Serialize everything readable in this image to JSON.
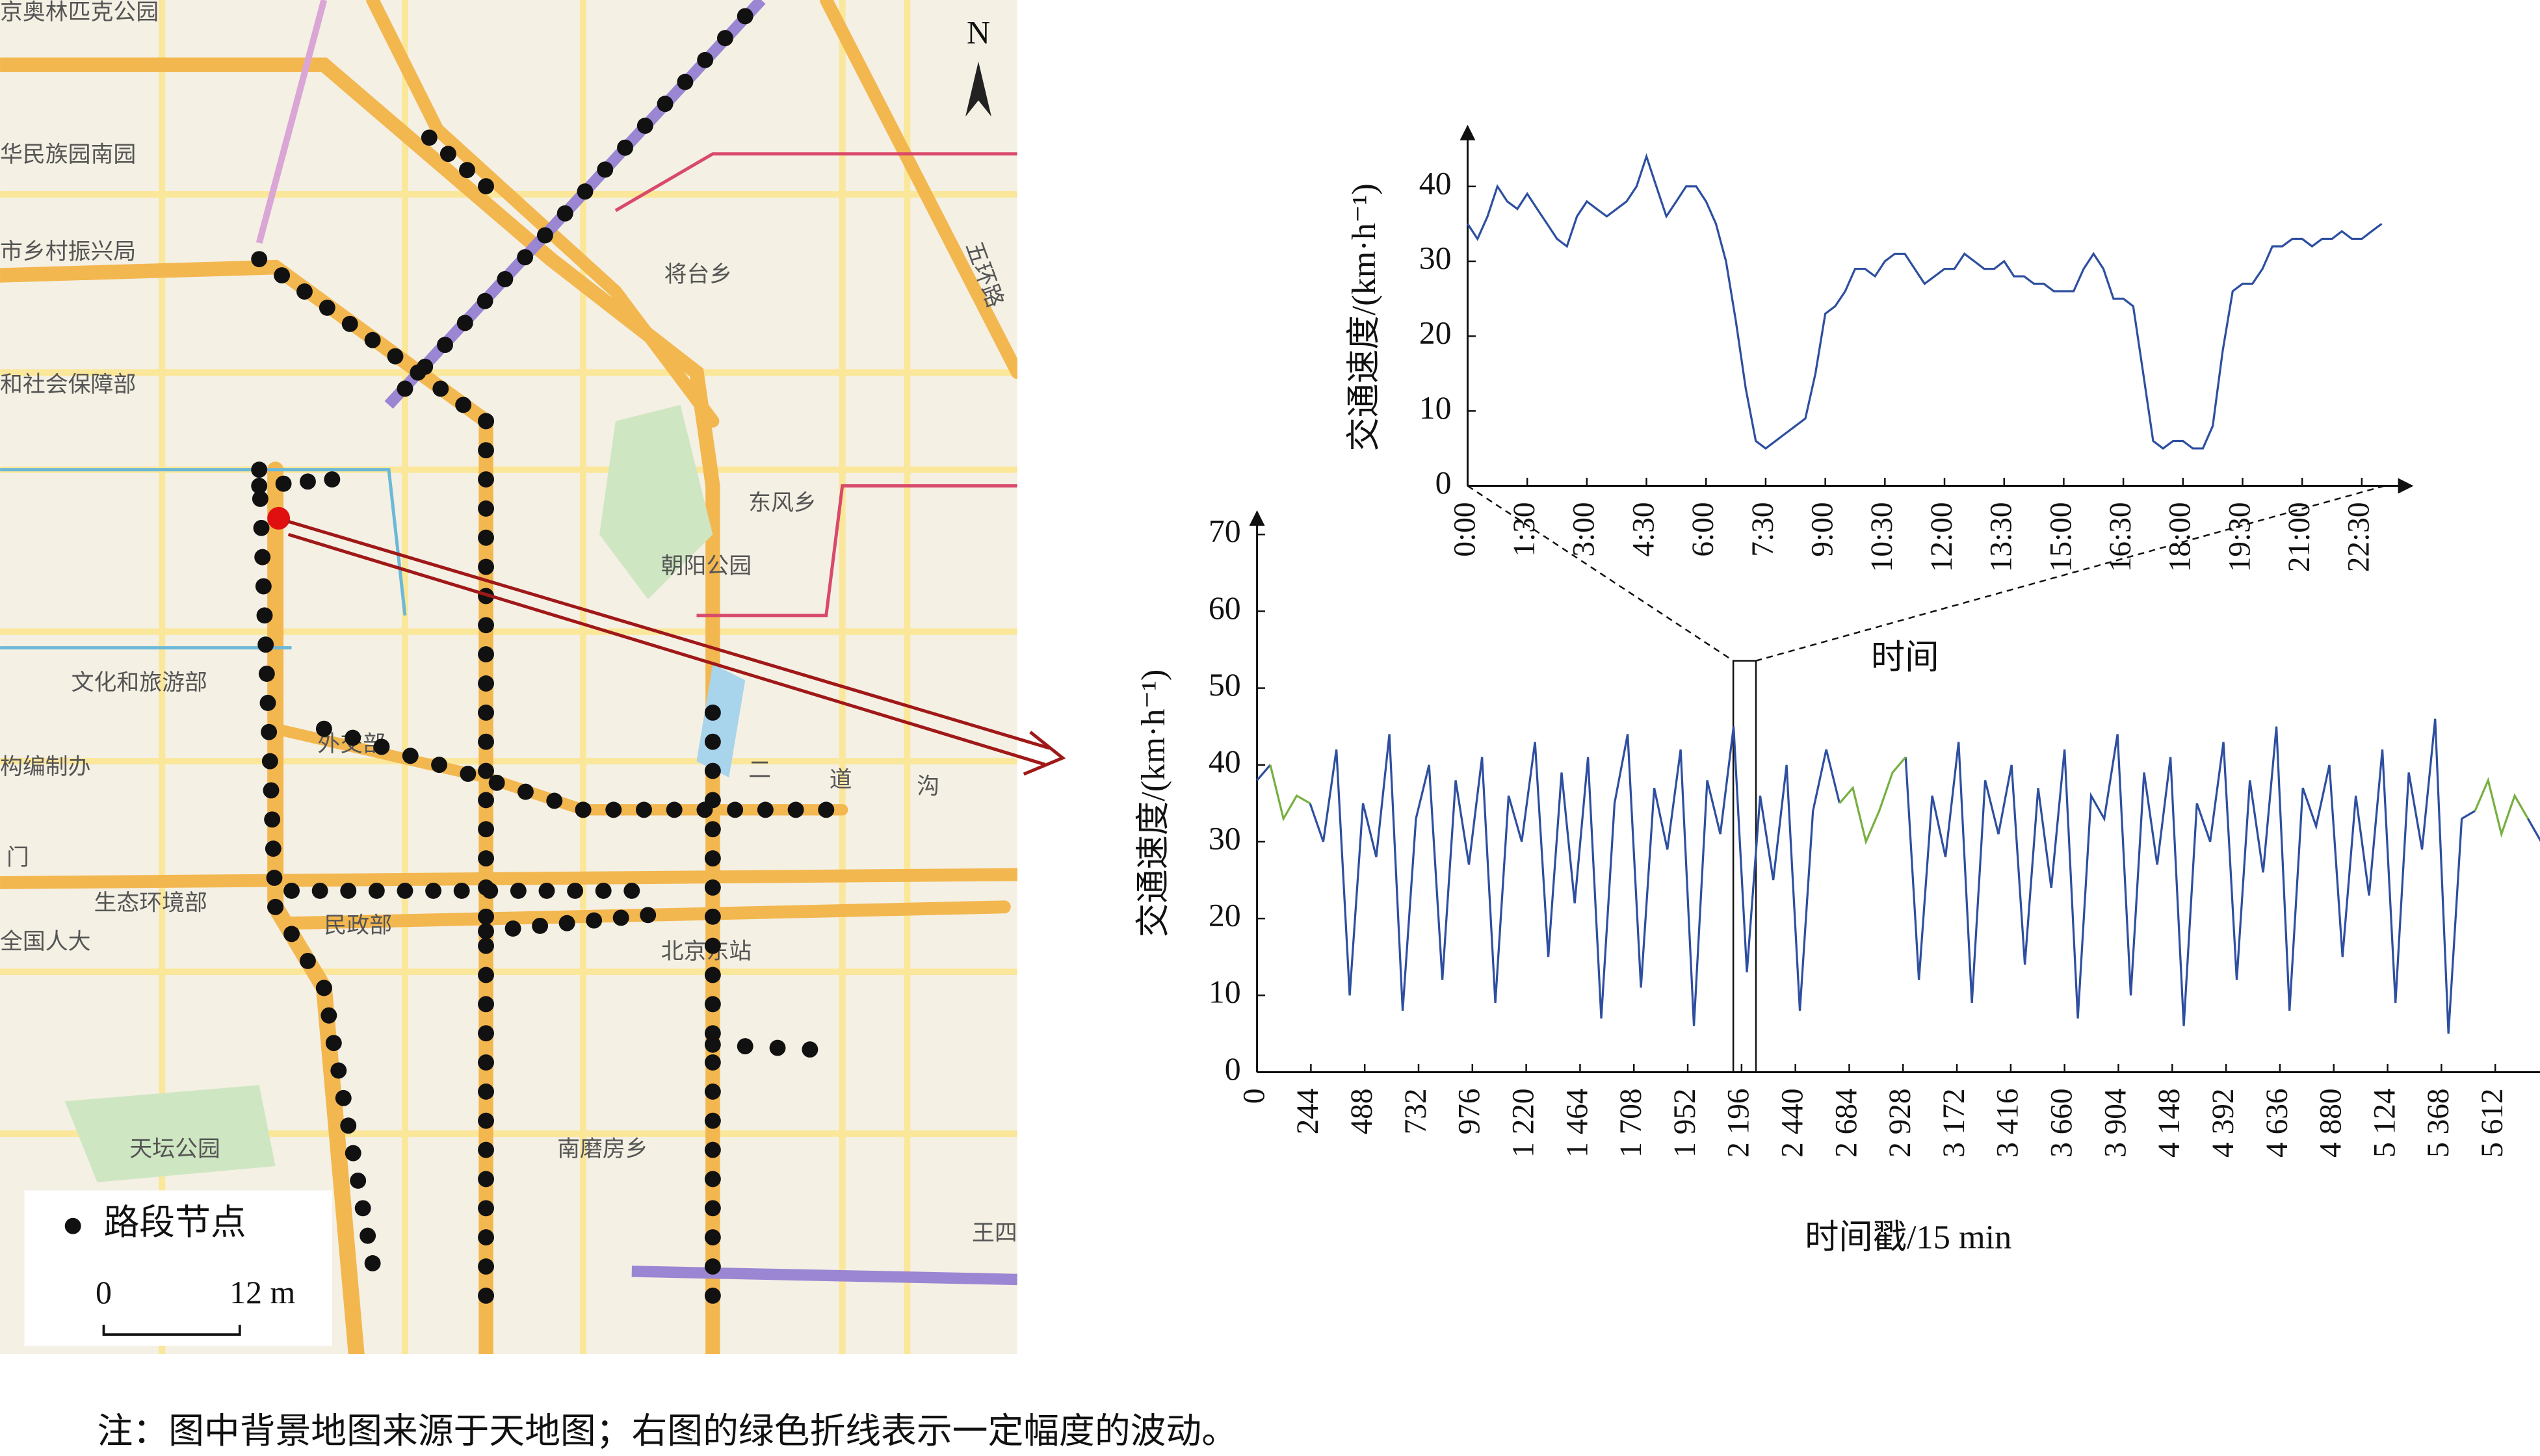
{
  "map": {
    "labels": [
      "京奥林匹克公园",
      "华民族园南园",
      "市乡村振兴局",
      "和社会保障部",
      "将台乡",
      "东风乡",
      "朝阳公园",
      "文化和旅游部",
      "构编制办",
      "外交部",
      "门",
      "生态环境部",
      "全国人大",
      "民政部",
      "北京东站",
      "南磨房乡",
      "天坛公园",
      "王四",
      "五环路",
      "二",
      "道",
      "沟"
    ],
    "north": "N",
    "legend": "路段节点",
    "scale": [
      "0",
      "12 m"
    ]
  },
  "chart_data": [
    {
      "type": "line",
      "ylabel": "交通速度/(km·h⁻¹)",
      "xlabel": "时间",
      "categories": [
        "0:00",
        null,
        null,
        null,
        null,
        null,
        "1:30",
        null,
        null,
        null,
        null,
        null,
        "3:00",
        null,
        null,
        null,
        null,
        null,
        "4:30",
        null,
        null,
        null,
        null,
        null,
        "6:00",
        null,
        null,
        null,
        null,
        null,
        "7:30",
        null,
        null,
        null,
        null,
        null,
        "9:00",
        null,
        null,
        null,
        null,
        null,
        "10:30",
        null,
        null,
        null,
        null,
        null,
        "12:00",
        null,
        null,
        null,
        null,
        null,
        "13:30",
        null,
        null,
        null,
        null,
        null,
        "15:00",
        null,
        null,
        null,
        null,
        null,
        "16:30",
        null,
        null,
        null,
        null,
        null,
        "18:00",
        null,
        null,
        null,
        null,
        null,
        "19:30",
        null,
        null,
        null,
        null,
        null,
        "21:00",
        null,
        null,
        null,
        null,
        null,
        "22:30",
        null,
        null
      ],
      "series": [
        {
          "name": "交通速度",
          "color": "#2e4fa0",
          "values": [
            35,
            33,
            36,
            40,
            38,
            37,
            39,
            37,
            35,
            33,
            32,
            36,
            38,
            37,
            36,
            37,
            38,
            40,
            44,
            40,
            36,
            38,
            40,
            40,
            38,
            35,
            30,
            22,
            13,
            6,
            5,
            6,
            7,
            8,
            9,
            15,
            23,
            24,
            26,
            29,
            29,
            28,
            30,
            31,
            31,
            29,
            27,
            28,
            29,
            29,
            31,
            30,
            29,
            29,
            30,
            28,
            28,
            27,
            27,
            26,
            26,
            26,
            29,
            31,
            29,
            25,
            25,
            24,
            15,
            6,
            5,
            6,
            6,
            5,
            5,
            8,
            18,
            26,
            27,
            27,
            29,
            32,
            32,
            33,
            33,
            32,
            33,
            33,
            34,
            33,
            33,
            34,
            35
          ]
        }
      ],
      "ylim": [
        0,
        45
      ],
      "yticks": [
        0,
        10,
        20,
        30,
        40
      ]
    },
    {
      "type": "line",
      "ylabel": "交通速度/(km·h⁻¹)",
      "xlabel": "时间戳/15 min",
      "x": [
        0,
        60,
        120,
        180,
        240,
        300,
        360,
        420,
        480,
        540,
        600,
        660,
        720,
        780,
        840,
        900,
        960,
        1020,
        1080,
        1140,
        1200,
        1260,
        1320,
        1380,
        1440,
        1500,
        1560,
        1620,
        1680,
        1740,
        1800,
        1860,
        1920,
        1980,
        2040,
        2100,
        2160,
        2220,
        2280,
        2340,
        2400,
        2460,
        2520,
        2580,
        2640,
        2700,
        2760,
        2820,
        2880,
        2940,
        3000,
        3060,
        3120,
        3180,
        3240,
        3300,
        3360,
        3420,
        3480,
        3540,
        3600,
        3660,
        3720,
        3780,
        3840,
        3900,
        3960,
        4020,
        4080,
        4140,
        4200,
        4260,
        4320,
        4380,
        4440,
        4500,
        4560,
        4620,
        4680,
        4740,
        4800,
        4860,
        4920,
        4980,
        5040,
        5100,
        5160,
        5220,
        5280,
        5340,
        5400,
        5460,
        5520,
        5580,
        5640,
        5700,
        5760,
        5820
      ],
      "series": [
        {
          "name": "交通速度",
          "color": "#2e4fa0",
          "values": [
            38,
            40,
            null,
            null,
            35,
            30,
            42,
            10,
            35,
            28,
            44,
            8,
            33,
            40,
            12,
            38,
            27,
            41,
            9,
            36,
            30,
            43,
            15,
            39,
            22,
            41,
            7,
            35,
            44,
            11,
            37,
            29,
            42,
            6,
            38,
            31,
            45,
            13,
            36,
            25,
            40,
            8,
            34,
            42,
            35,
            null,
            null,
            null,
            null,
            41,
            12,
            36,
            28,
            43,
            9,
            38,
            31,
            40,
            14,
            37,
            24,
            42,
            7,
            36,
            33,
            44,
            10,
            39,
            27,
            41,
            6,
            35,
            30,
            43,
            12,
            38,
            26,
            45,
            8,
            37,
            32,
            40,
            15,
            36,
            23,
            42,
            9,
            39,
            29,
            46,
            5,
            33,
            34,
            null,
            null,
            null,
            33,
            30
          ]
        },
        {
          "name": "波动",
          "color": "#77b041",
          "values": [
            null,
            40,
            33,
            36,
            35,
            null,
            null,
            null,
            null,
            null,
            null,
            null,
            null,
            null,
            null,
            null,
            null,
            null,
            null,
            null,
            null,
            null,
            null,
            null,
            null,
            null,
            null,
            null,
            null,
            null,
            null,
            null,
            null,
            null,
            null,
            null,
            null,
            null,
            null,
            null,
            null,
            null,
            null,
            null,
            35,
            37,
            30,
            34,
            39,
            41,
            null,
            null,
            null,
            null,
            null,
            null,
            null,
            null,
            null,
            null,
            null,
            null,
            null,
            null,
            null,
            null,
            null,
            null,
            null,
            null,
            null,
            null,
            null,
            null,
            null,
            null,
            null,
            null,
            null,
            null,
            null,
            null,
            null,
            null,
            null,
            null,
            null,
            null,
            null,
            null,
            null,
            null,
            34,
            38,
            31,
            36,
            33,
            null
          ]
        }
      ],
      "xlim": [
        0,
        5800
      ],
      "ylim": [
        0,
        70
      ],
      "yticks": [
        0,
        10,
        20,
        30,
        40,
        50,
        60,
        70
      ],
      "xticks": [
        0,
        244,
        488,
        732,
        976,
        {
          "value": 1220,
          "label": "1 220"
        },
        {
          "value": 1464,
          "label": "1 464"
        },
        {
          "value": 1708,
          "label": "1 708"
        },
        {
          "value": 1952,
          "label": "1 952"
        },
        {
          "value": 2196,
          "label": "2 196"
        },
        {
          "value": 2440,
          "label": "2 440"
        },
        {
          "value": 2684,
          "label": "2 684"
        },
        {
          "value": 2928,
          "label": "2 928"
        },
        {
          "value": 3172,
          "label": "3 172"
        },
        {
          "value": 3416,
          "label": "3 416"
        },
        {
          "value": 3660,
          "label": "3 660"
        },
        {
          "value": 3904,
          "label": "3 904"
        },
        {
          "value": 4148,
          "label": "4 148"
        },
        {
          "value": 4392,
          "label": "4 392"
        },
        {
          "value": 4636,
          "label": "4 636"
        },
        {
          "value": 4880,
          "label": "4 880"
        },
        {
          "value": 5124,
          "label": "5 124"
        },
        {
          "value": 5368,
          "label": "5 368"
        },
        {
          "value": 5612,
          "label": "5 612"
        }
      ]
    }
  ],
  "note": "注：图中背景地图来源于天地图；右图的绿色折线表示一定幅度的波动。"
}
